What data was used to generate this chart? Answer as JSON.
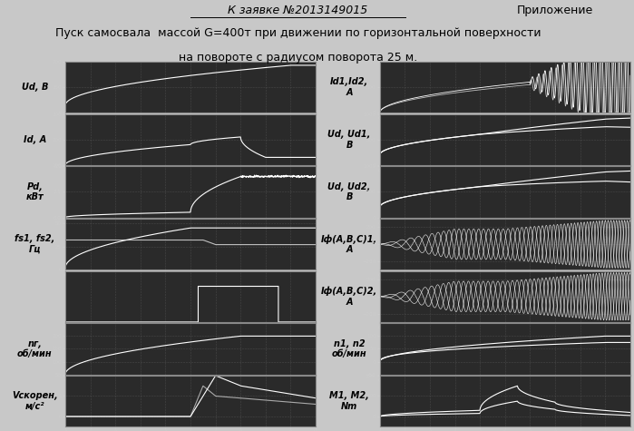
{
  "title_line1": "К заявке №2013149015",
  "title_line2": "Пуск самосвала  массой G=400т при движении по горизонтальной поверхности",
  "title_line3": "на повороте с радиусом поворота 25 м.",
  "appendix_text": "Приложение",
  "left_labels": [
    "Ud, B",
    "Id, A",
    "Pd,\nкВт",
    "fs1, fs2,\nГц",
    "",
    "nг,\nоб/мин",
    "Vскорен,\nм/с²"
  ],
  "right_labels": [
    "Id1,Id2,\nA",
    "Ud, Ud1,\nB",
    "Ud, Ud2,\nB",
    "Iф(А,В,С)1,\nA",
    "Iф(А,В,С)2,\nA",
    "n1, n2\nоб/мин",
    "M1, M2,\nNm"
  ],
  "bg_dark": "#2a2a2a",
  "bg_light": "#c8c8c8",
  "bg_white": "#f0f0f0",
  "line_color": "#ffffff",
  "grid_color": "#555555",
  "n_rows": 7,
  "n_cols": 2
}
